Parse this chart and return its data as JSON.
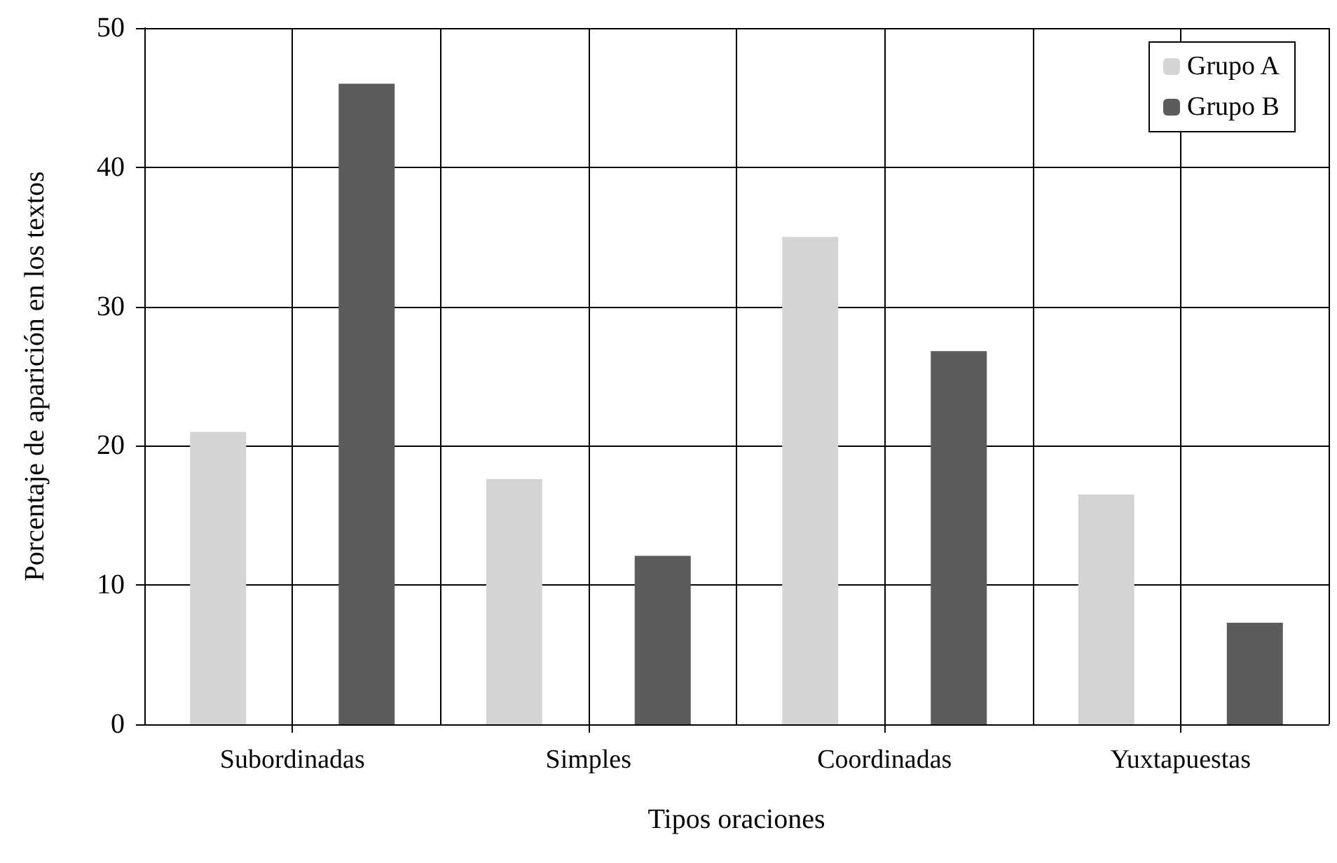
{
  "chart_data": {
    "type": "bar",
    "xlabel": "Tipos oraciones",
    "ylabel": "Porcentaje de aparición en los textos",
    "categories": [
      "Subordinadas",
      "Simples",
      "Coordinadas",
      "Yuxtapuestas"
    ],
    "series": [
      {
        "name": "Grupo A",
        "color": "#d4d4d4",
        "values": [
          21,
          17.6,
          35,
          16.5
        ]
      },
      {
        "name": "Grupo B",
        "color": "#5c5c5c",
        "values": [
          46,
          12.1,
          26.8,
          7.3
        ]
      }
    ],
    "ylim": [
      0,
      50
    ],
    "yticks": [
      0,
      10,
      20,
      30,
      40,
      50
    ],
    "grid": true,
    "legend": "top right"
  }
}
